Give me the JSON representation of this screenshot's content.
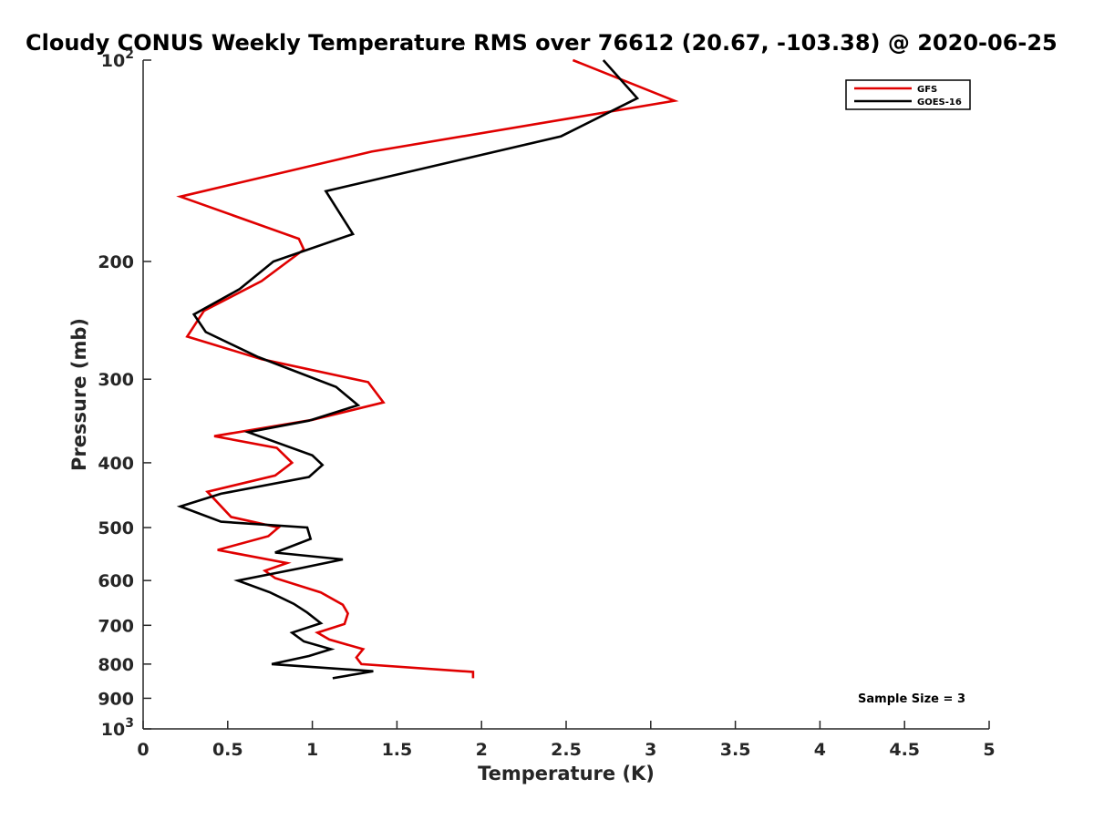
{
  "chart_data": {
    "type": "line",
    "title": "Cloudy CONUS Weekly Temperature RMS over 76612 (20.67, -103.38) @ 2020-06-25",
    "xlabel": "Temperature (K)",
    "ylabel": "Pressure (mb)",
    "xlim": [
      0,
      5
    ],
    "ylim": [
      100,
      1000
    ],
    "y_scale": "log",
    "y_reversed": true,
    "x_ticks": [
      {
        "value": 0,
        "label": "0"
      },
      {
        "value": 0.5,
        "label": "0.5"
      },
      {
        "value": 1,
        "label": "1"
      },
      {
        "value": 1.5,
        "label": "1.5"
      },
      {
        "value": 2,
        "label": "2"
      },
      {
        "value": 2.5,
        "label": "2.5"
      },
      {
        "value": 3,
        "label": "3"
      },
      {
        "value": 3.5,
        "label": "3.5"
      },
      {
        "value": 4,
        "label": "4"
      },
      {
        "value": 4.5,
        "label": "4.5"
      },
      {
        "value": 5,
        "label": "5"
      }
    ],
    "y_ticks": [
      {
        "value": 100,
        "base": "10",
        "exp": "2"
      },
      {
        "value": 200,
        "base": "200",
        "exp": ""
      },
      {
        "value": 300,
        "base": "300",
        "exp": ""
      },
      {
        "value": 400,
        "base": "400",
        "exp": ""
      },
      {
        "value": 500,
        "base": "500",
        "exp": ""
      },
      {
        "value": 600,
        "base": "600",
        "exp": ""
      },
      {
        "value": 700,
        "base": "700",
        "exp": ""
      },
      {
        "value": 800,
        "base": "800",
        "exp": ""
      },
      {
        "value": 900,
        "base": "900",
        "exp": ""
      },
      {
        "value": 1000,
        "base": "10",
        "exp": "3"
      }
    ],
    "grid": false,
    "legend_position": "top-right",
    "annotation": "Sample Size = 3",
    "series": [
      {
        "name": "GFS",
        "color": "#e00000",
        "points": [
          [
            2.54,
            100
          ],
          [
            3.14,
            115
          ],
          [
            1.35,
            137
          ],
          [
            0.22,
            160
          ],
          [
            0.92,
            185
          ],
          [
            0.95,
            192
          ],
          [
            0.7,
            214
          ],
          [
            0.36,
            237
          ],
          [
            0.26,
            259
          ],
          [
            0.7,
            280
          ],
          [
            1.33,
            303
          ],
          [
            1.42,
            325
          ],
          [
            1.0,
            345
          ],
          [
            0.42,
            365
          ],
          [
            0.79,
            380
          ],
          [
            0.88,
            400
          ],
          [
            0.78,
            418
          ],
          [
            0.38,
            442
          ],
          [
            0.52,
            482
          ],
          [
            0.8,
            500
          ],
          [
            0.74,
            515
          ],
          [
            0.44,
            540
          ],
          [
            0.85,
            565
          ],
          [
            0.72,
            580
          ],
          [
            0.78,
            595
          ],
          [
            1.05,
            625
          ],
          [
            1.18,
            652
          ],
          [
            1.21,
            672
          ],
          [
            1.19,
            697
          ],
          [
            1.03,
            718
          ],
          [
            1.1,
            735
          ],
          [
            1.3,
            760
          ],
          [
            1.26,
            782
          ],
          [
            1.29,
            800
          ],
          [
            1.95,
            822
          ],
          [
            1.95,
            840
          ]
        ]
      },
      {
        "name": "GOES-16",
        "color": "#000000",
        "points": [
          [
            2.72,
            100
          ],
          [
            2.92,
            114
          ],
          [
            2.47,
            130
          ],
          [
            1.08,
            157
          ],
          [
            1.24,
            182
          ],
          [
            0.77,
            200
          ],
          [
            0.57,
            220
          ],
          [
            0.3,
            240
          ],
          [
            0.37,
            255
          ],
          [
            0.68,
            278
          ],
          [
            1.14,
            308
          ],
          [
            1.27,
            328
          ],
          [
            0.98,
            346
          ],
          [
            0.62,
            360
          ],
          [
            1.0,
            390
          ],
          [
            1.06,
            403
          ],
          [
            0.98,
            420
          ],
          [
            0.46,
            445
          ],
          [
            0.22,
            465
          ],
          [
            0.46,
            490
          ],
          [
            0.97,
            500
          ],
          [
            0.99,
            520
          ],
          [
            0.78,
            545
          ],
          [
            1.18,
            558
          ],
          [
            0.93,
            575
          ],
          [
            0.56,
            600
          ],
          [
            0.75,
            625
          ],
          [
            0.89,
            650
          ],
          [
            0.97,
            670
          ],
          [
            1.05,
            695
          ],
          [
            0.88,
            718
          ],
          [
            0.95,
            740
          ],
          [
            1.11,
            760
          ],
          [
            0.98,
            778
          ],
          [
            0.76,
            800
          ],
          [
            1.36,
            820
          ],
          [
            1.12,
            840
          ]
        ]
      }
    ]
  }
}
